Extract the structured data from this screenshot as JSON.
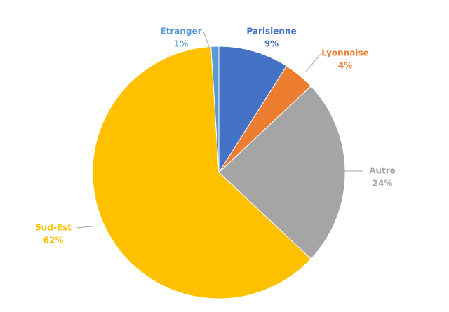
{
  "chart_data": {
    "type": "pie",
    "categories": [
      "Parisienne",
      "Lyonnaise",
      "Autre",
      "Sud-Est",
      "Etranger"
    ],
    "values": [
      9,
      4,
      24,
      62,
      1
    ],
    "value_labels": [
      "9%",
      "4%",
      "24%",
      "62%",
      "1%"
    ],
    "colors": [
      "#4472c4",
      "#ed7d31",
      "#a5a5a5",
      "#ffc000",
      "#5b9bd5"
    ]
  }
}
